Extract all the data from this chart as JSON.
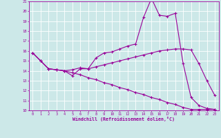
{
  "xlabel": "Windchill (Refroidissement éolien,°C)",
  "background_color": "#cce8e8",
  "grid_color": "#ffffff",
  "line_color": "#990099",
  "x": [
    0,
    1,
    2,
    3,
    4,
    5,
    6,
    7,
    8,
    9,
    10,
    11,
    12,
    13,
    14,
    15,
    16,
    17,
    18,
    19,
    20,
    21,
    22,
    23
  ],
  "line1": [
    15.8,
    15.0,
    14.2,
    14.1,
    14.0,
    13.5,
    14.2,
    14.2,
    15.3,
    15.8,
    15.9,
    16.2,
    16.5,
    16.7,
    19.4,
    21.3,
    19.6,
    19.5,
    19.8,
    14.7,
    11.3,
    10.5,
    10.2,
    10.1
  ],
  "line2": [
    15.8,
    15.0,
    14.2,
    14.1,
    14.0,
    14.1,
    14.3,
    14.2,
    14.4,
    14.6,
    14.8,
    15.0,
    15.2,
    15.4,
    15.6,
    15.8,
    16.0,
    16.1,
    16.2,
    16.2,
    16.1,
    14.7,
    13.0,
    11.5
  ],
  "line3": [
    15.8,
    15.0,
    14.2,
    14.1,
    14.0,
    13.8,
    13.6,
    13.3,
    13.1,
    12.8,
    12.6,
    12.3,
    12.1,
    11.8,
    11.6,
    11.3,
    11.1,
    10.8,
    10.6,
    10.3,
    10.1,
    10.1,
    10.1,
    10.1
  ],
  "ylim": [
    10,
    21
  ],
  "yticks": [
    10,
    11,
    12,
    13,
    14,
    15,
    16,
    17,
    18,
    19,
    20,
    21
  ],
  "xticks": [
    0,
    1,
    2,
    3,
    4,
    5,
    6,
    7,
    8,
    9,
    10,
    11,
    12,
    13,
    14,
    15,
    16,
    17,
    18,
    19,
    20,
    21,
    22,
    23
  ],
  "marker": "+",
  "markersize": 3,
  "linewidth": 0.8
}
